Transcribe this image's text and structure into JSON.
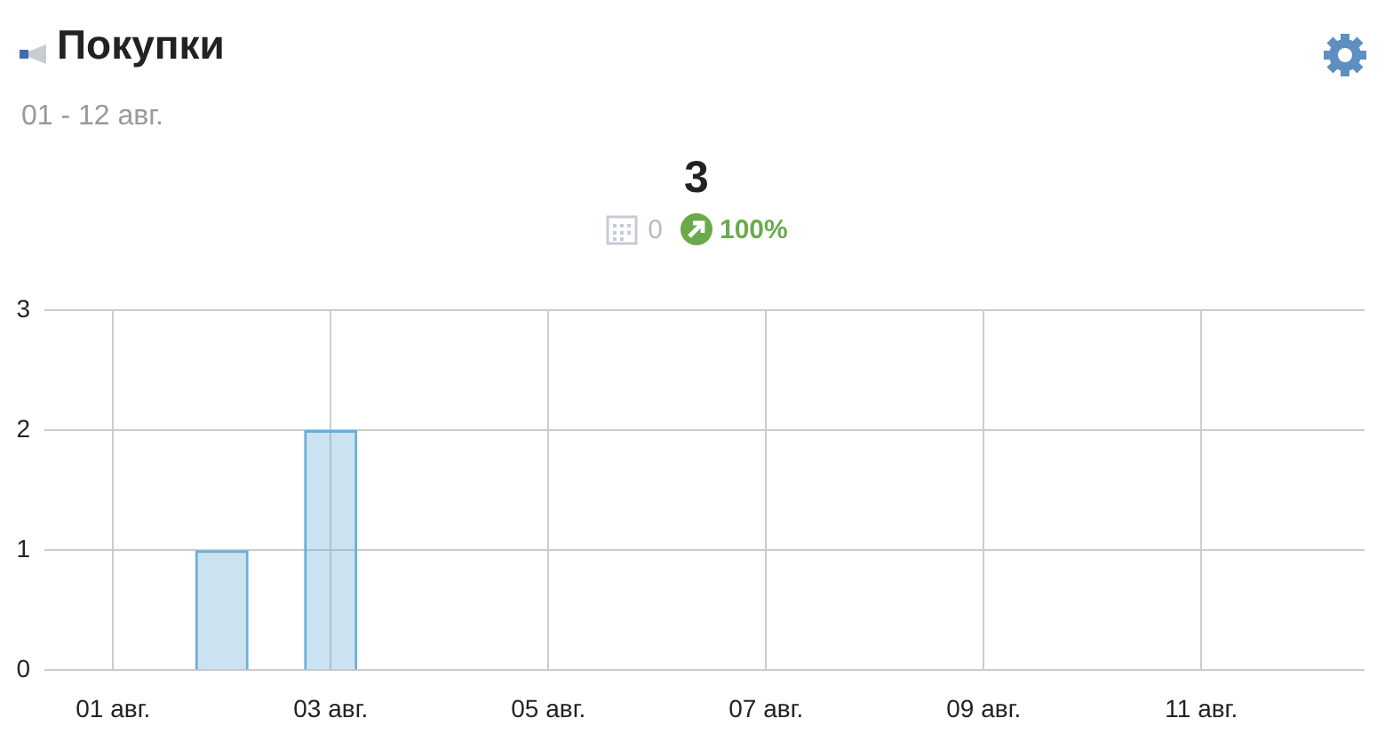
{
  "chart_data": {
    "type": "bar",
    "title": "Покупки",
    "subtitle": "01 - 12 авг.",
    "annotations": [
      "3",
      "0",
      "100%"
    ],
    "categories": [
      "01 авг.",
      null,
      "03 авг.",
      null,
      "05 авг.",
      null,
      "07 авг.",
      null,
      "09 авг.",
      null,
      "11 авг.",
      null
    ],
    "values": [
      0,
      1,
      2,
      0,
      0,
      0,
      0,
      0,
      0,
      0,
      0,
      0
    ],
    "color": "#6aaed6",
    "ylim": [
      0,
      3
    ],
    "yticks": [
      0,
      1,
      2,
      3
    ],
    "grid": true
  }
}
